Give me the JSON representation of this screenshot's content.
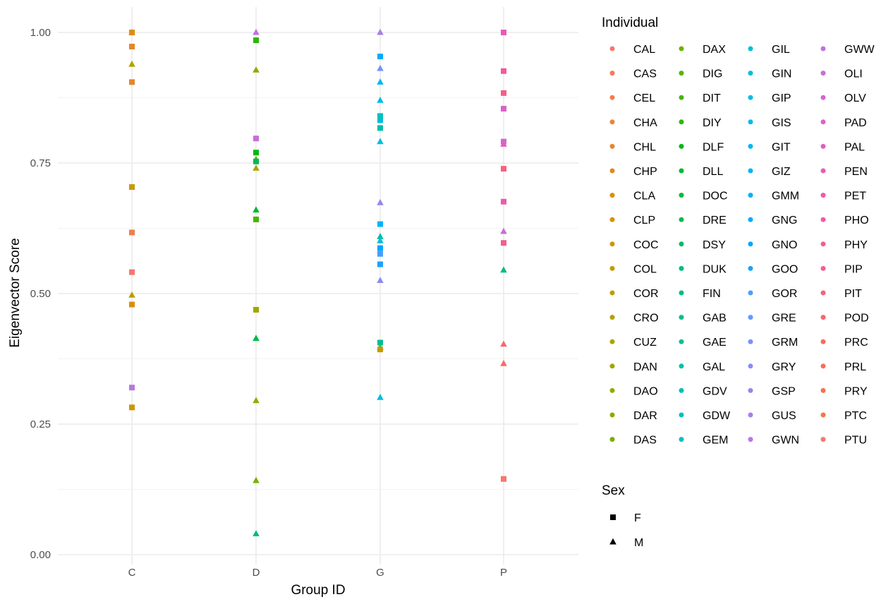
{
  "chart_data": {
    "type": "scatter",
    "title": "",
    "xlabel": "Group ID",
    "ylabel": "Eigenvector Score",
    "categories": [
      "C",
      "D",
      "G",
      "P"
    ],
    "ylim": [
      0,
      1
    ],
    "yticks": [
      0.0,
      0.25,
      0.5,
      0.75,
      1.0
    ],
    "ytick_labels": [
      "0.00",
      "0.25",
      "0.50",
      "0.75",
      "1.00"
    ],
    "grid": true,
    "legend_position": "right",
    "legend_title_color": "Individual",
    "legend_title_shape": "Sex",
    "individuals": [
      {
        "name": "CAL",
        "color": "#F8766D"
      },
      {
        "name": "CAS",
        "color": "#F57A5C"
      },
      {
        "name": "CEL",
        "color": "#F17E4C"
      },
      {
        "name": "CHA",
        "color": "#EC823B"
      },
      {
        "name": "CHL",
        "color": "#E6862A"
      },
      {
        "name": "CHP",
        "color": "#E18A1A"
      },
      {
        "name": "CLA",
        "color": "#DB8E0B"
      },
      {
        "name": "CLP",
        "color": "#D49200"
      },
      {
        "name": "COC",
        "color": "#CD9600"
      },
      {
        "name": "COL",
        "color": "#C59A00"
      },
      {
        "name": "COR",
        "color": "#BC9D00"
      },
      {
        "name": "CRO",
        "color": "#B3A100"
      },
      {
        "name": "CUZ",
        "color": "#A9A400"
      },
      {
        "name": "DAN",
        "color": "#9EA700"
      },
      {
        "name": "DAO",
        "color": "#93AA00"
      },
      {
        "name": "DAR",
        "color": "#87AD00"
      },
      {
        "name": "DAS",
        "color": "#79AF00"
      },
      {
        "name": "DAX",
        "color": "#6BB100"
      },
      {
        "name": "DIG",
        "color": "#5BB300"
      },
      {
        "name": "DIT",
        "color": "#47B500"
      },
      {
        "name": "DIY",
        "color": "#2DB600"
      },
      {
        "name": "DLF",
        "color": "#00B711"
      },
      {
        "name": "DLL",
        "color": "#00B82E"
      },
      {
        "name": "DOC",
        "color": "#00B943"
      },
      {
        "name": "DRE",
        "color": "#00BA55"
      },
      {
        "name": "DSY",
        "color": "#00BB65"
      },
      {
        "name": "DUK",
        "color": "#00BC74"
      },
      {
        "name": "FIN",
        "color": "#00BD82"
      },
      {
        "name": "GAB",
        "color": "#00BE8F"
      },
      {
        "name": "GAE",
        "color": "#00BF9C"
      },
      {
        "name": "GAL",
        "color": "#00BFA8"
      },
      {
        "name": "GDV",
        "color": "#00C0B3"
      },
      {
        "name": "GDW",
        "color": "#00C0BE"
      },
      {
        "name": "GEM",
        "color": "#00C0C8"
      },
      {
        "name": "GIL",
        "color": "#00BFD2"
      },
      {
        "name": "GIN",
        "color": "#00BEDB"
      },
      {
        "name": "GIP",
        "color": "#00BDE4"
      },
      {
        "name": "GIS",
        "color": "#00BAEC"
      },
      {
        "name": "GIT",
        "color": "#00B7F3"
      },
      {
        "name": "GIZ",
        "color": "#00B4F8"
      },
      {
        "name": "GMM",
        "color": "#00B0F6"
      },
      {
        "name": "GNG",
        "color": "#00ACFC"
      },
      {
        "name": "GNO",
        "color": "#00A7FF"
      },
      {
        "name": "GOO",
        "color": "#19A2FF"
      },
      {
        "name": "GOR",
        "color": "#4A9DFF"
      },
      {
        "name": "GRE",
        "color": "#6497FF"
      },
      {
        "name": "GRM",
        "color": "#7891F9"
      },
      {
        "name": "GRY",
        "color": "#8A8BF4"
      },
      {
        "name": "GSP",
        "color": "#9A84EE"
      },
      {
        "name": "GUS",
        "color": "#A87EE8"
      },
      {
        "name": "GWN",
        "color": "#B478E2"
      },
      {
        "name": "GWW",
        "color": "#BF72DC"
      },
      {
        "name": "OLI",
        "color": "#C96CD6"
      },
      {
        "name": "OLV",
        "color": "#D266D0"
      },
      {
        "name": "PAD",
        "color": "#DA62C8"
      },
      {
        "name": "PAL",
        "color": "#E15EBF"
      },
      {
        "name": "PEN",
        "color": "#E75BB6"
      },
      {
        "name": "PET",
        "color": "#ED5AAB"
      },
      {
        "name": "PHO",
        "color": "#F15AA0"
      },
      {
        "name": "PHY",
        "color": "#F45B94"
      },
      {
        "name": "PIP",
        "color": "#F75D88"
      },
      {
        "name": "PIT",
        "color": "#F9607C"
      },
      {
        "name": "POD",
        "color": "#FA6470"
      },
      {
        "name": "PRC",
        "color": "#FB6864"
      },
      {
        "name": "PRL",
        "color": "#FB6C59"
      },
      {
        "name": "PRY",
        "color": "#FA704E"
      },
      {
        "name": "PTC",
        "color": "#F97344"
      },
      {
        "name": "PTU",
        "color": "#F8766D"
      }
    ],
    "sex_legend": [
      {
        "label": "F",
        "shape": "square"
      },
      {
        "label": "M",
        "shape": "triangle"
      }
    ],
    "points": [
      {
        "group": "C",
        "y": 1.0,
        "sex": "F",
        "color": "#D49200"
      },
      {
        "group": "C",
        "y": 1.0,
        "sex": "M",
        "color": "#E18A1A"
      },
      {
        "group": "C",
        "y": 0.973,
        "sex": "F",
        "color": "#E6862A"
      },
      {
        "group": "C",
        "y": 0.939,
        "sex": "M",
        "color": "#B3A100"
      },
      {
        "group": "C",
        "y": 0.905,
        "sex": "F",
        "color": "#E6862A"
      },
      {
        "group": "C",
        "y": 0.704,
        "sex": "F",
        "color": "#C59A00"
      },
      {
        "group": "C",
        "y": 0.617,
        "sex": "F",
        "color": "#F17E4C"
      },
      {
        "group": "C",
        "y": 0.541,
        "sex": "F",
        "color": "#F8766D"
      },
      {
        "group": "C",
        "y": 0.497,
        "sex": "M",
        "color": "#BC9D00"
      },
      {
        "group": "C",
        "y": 0.479,
        "sex": "F",
        "color": "#DB8E0B"
      },
      {
        "group": "C",
        "y": 0.32,
        "sex": "F",
        "color": "#B478E2"
      },
      {
        "group": "C",
        "y": 0.282,
        "sex": "F",
        "color": "#CD9600"
      },
      {
        "group": "D",
        "y": 1.0,
        "sex": "M",
        "color": "#BF72DC"
      },
      {
        "group": "D",
        "y": 0.985,
        "sex": "F",
        "color": "#2DB600"
      },
      {
        "group": "D",
        "y": 0.928,
        "sex": "M",
        "color": "#87AD00"
      },
      {
        "group": "D",
        "y": 0.797,
        "sex": "F",
        "color": "#C96CD6"
      },
      {
        "group": "D",
        "y": 0.77,
        "sex": "F",
        "color": "#00B711"
      },
      {
        "group": "D",
        "y": 0.757,
        "sex": "M",
        "color": "#6BB100"
      },
      {
        "group": "D",
        "y": 0.753,
        "sex": "F",
        "color": "#00BA55"
      },
      {
        "group": "D",
        "y": 0.74,
        "sex": "M",
        "color": "#A9A400"
      },
      {
        "group": "D",
        "y": 0.66,
        "sex": "M",
        "color": "#00B82E"
      },
      {
        "group": "D",
        "y": 0.642,
        "sex": "F",
        "color": "#47B500"
      },
      {
        "group": "D",
        "y": 0.469,
        "sex": "F",
        "color": "#9EA700"
      },
      {
        "group": "D",
        "y": 0.414,
        "sex": "M",
        "color": "#00B943"
      },
      {
        "group": "D",
        "y": 0.295,
        "sex": "M",
        "color": "#93AA00"
      },
      {
        "group": "D",
        "y": 0.142,
        "sex": "M",
        "color": "#79AF00"
      },
      {
        "group": "D",
        "y": 0.04,
        "sex": "M",
        "color": "#00BC74"
      },
      {
        "group": "G",
        "y": 1.0,
        "sex": "M",
        "color": "#A87EE8"
      },
      {
        "group": "G",
        "y": 0.954,
        "sex": "F",
        "color": "#00ACFC"
      },
      {
        "group": "G",
        "y": 0.931,
        "sex": "M",
        "color": "#7891F9"
      },
      {
        "group": "G",
        "y": 0.905,
        "sex": "M",
        "color": "#00B7F3"
      },
      {
        "group": "G",
        "y": 0.87,
        "sex": "M",
        "color": "#00BAEC"
      },
      {
        "group": "G",
        "y": 0.84,
        "sex": "F",
        "color": "#00C0BE"
      },
      {
        "group": "G",
        "y": 0.832,
        "sex": "F",
        "color": "#00BFD2"
      },
      {
        "group": "G",
        "y": 0.817,
        "sex": "F",
        "color": "#00BFA8"
      },
      {
        "group": "G",
        "y": 0.791,
        "sex": "M",
        "color": "#00BDE4"
      },
      {
        "group": "G",
        "y": 0.674,
        "sex": "M",
        "color": "#9A84EE"
      },
      {
        "group": "G",
        "y": 0.633,
        "sex": "F",
        "color": "#00B4F8"
      },
      {
        "group": "G",
        "y": 0.609,
        "sex": "M",
        "color": "#00BF9C"
      },
      {
        "group": "G",
        "y": 0.601,
        "sex": "M",
        "color": "#00BEDB"
      },
      {
        "group": "G",
        "y": 0.587,
        "sex": "F",
        "color": "#00A7FF"
      },
      {
        "group": "G",
        "y": 0.576,
        "sex": "F",
        "color": "#4A9DFF"
      },
      {
        "group": "G",
        "y": 0.556,
        "sex": "F",
        "color": "#19A2FF"
      },
      {
        "group": "G",
        "y": 0.525,
        "sex": "M",
        "color": "#8A8BF4"
      },
      {
        "group": "G",
        "y": 0.406,
        "sex": "F",
        "color": "#00BE8F"
      },
      {
        "group": "G",
        "y": 0.397,
        "sex": "M",
        "color": "#00C0B3"
      },
      {
        "group": "G",
        "y": 0.393,
        "sex": "F",
        "color": "#C59A00"
      },
      {
        "group": "G",
        "y": 0.301,
        "sex": "M",
        "color": "#00BEDB"
      },
      {
        "group": "P",
        "y": 1.0,
        "sex": "F",
        "color": "#E75BB6"
      },
      {
        "group": "P",
        "y": 0.926,
        "sex": "F",
        "color": "#F15AA0"
      },
      {
        "group": "P",
        "y": 0.884,
        "sex": "F",
        "color": "#F75D88"
      },
      {
        "group": "P",
        "y": 0.854,
        "sex": "F",
        "color": "#DA62C8"
      },
      {
        "group": "P",
        "y": 0.791,
        "sex": "F",
        "color": "#D266D0"
      },
      {
        "group": "P",
        "y": 0.786,
        "sex": "M",
        "color": "#E15EBF"
      },
      {
        "group": "P",
        "y": 0.739,
        "sex": "F",
        "color": "#F9607C"
      },
      {
        "group": "P",
        "y": 0.676,
        "sex": "F",
        "color": "#ED5AAB"
      },
      {
        "group": "P",
        "y": 0.619,
        "sex": "M",
        "color": "#C96CD6"
      },
      {
        "group": "P",
        "y": 0.597,
        "sex": "F",
        "color": "#F45B94"
      },
      {
        "group": "P",
        "y": 0.545,
        "sex": "M",
        "color": "#00BD82"
      },
      {
        "group": "P",
        "y": 0.403,
        "sex": "M",
        "color": "#FA6470"
      },
      {
        "group": "P",
        "y": 0.366,
        "sex": "M",
        "color": "#FB6864"
      },
      {
        "group": "P",
        "y": 0.145,
        "sex": "F",
        "color": "#F8766D"
      }
    ]
  }
}
